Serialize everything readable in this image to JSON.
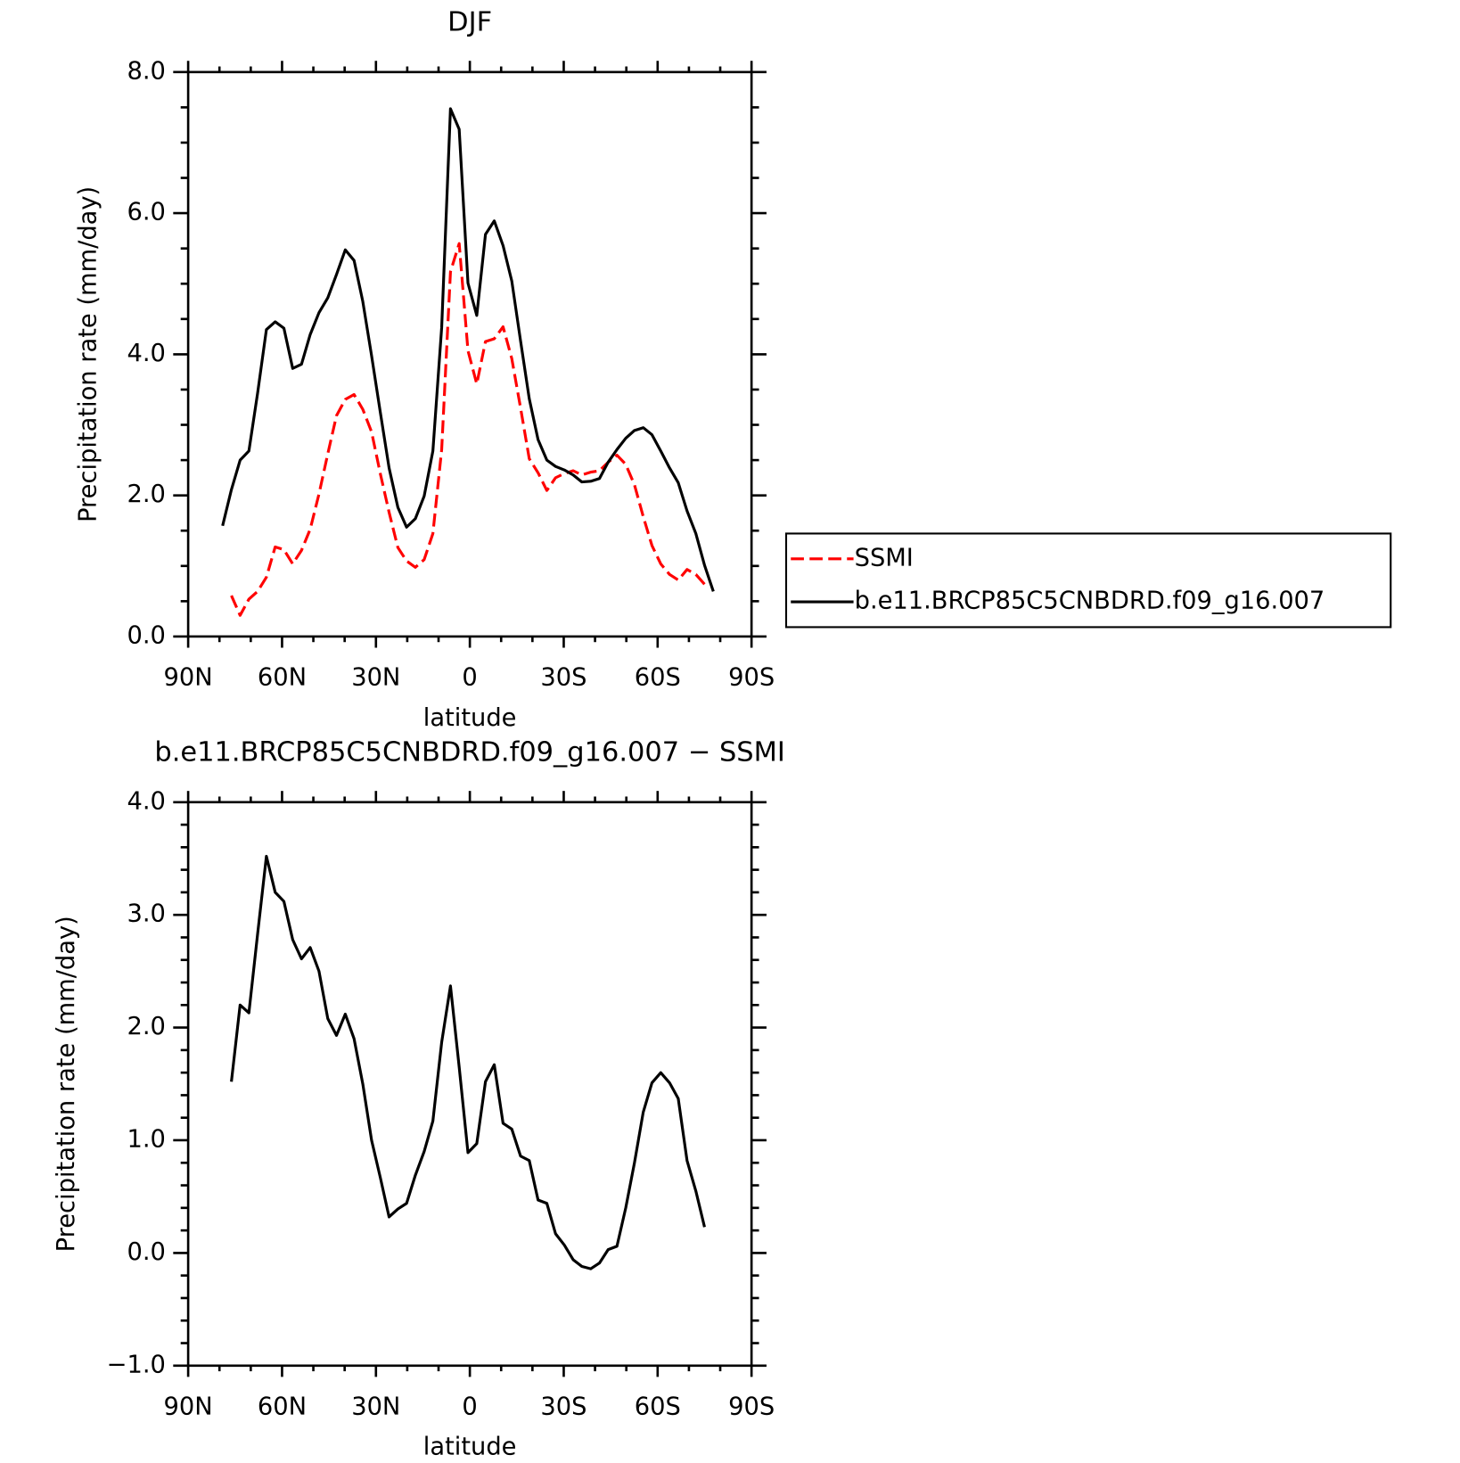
{
  "chart_data": [
    {
      "type": "line",
      "title": "DJF",
      "xlabel": "latitude",
      "ylabel": "Precipitation rate (mm/day)",
      "x": [
        79,
        76.2,
        73.4,
        70.6,
        67.8,
        65,
        62.2,
        59.4,
        56.6,
        53.8,
        51,
        48.2,
        45.4,
        42.6,
        39.8,
        37,
        34.2,
        31.4,
        28.6,
        25.8,
        23,
        20.2,
        17.4,
        14.6,
        11.8,
        9,
        6.2,
        3.4,
        0.6,
        -2.2,
        -5,
        -7.8,
        -10.6,
        -13.4,
        -16.2,
        -19,
        -21.8,
        -24.6,
        -27.4,
        -30.2,
        -33,
        -35.8,
        -38.6,
        -41.4,
        -44.2,
        -47,
        -49.8,
        -52.6,
        -55.4,
        -58.2,
        -61,
        -63.8,
        -66.6,
        -69.4,
        -72.2,
        -75,
        -77.8
      ],
      "series": [
        {
          "name": "SSMI",
          "color": "#ff0000",
          "line_style": "dashed",
          "values": [
            null,
            0.58,
            0.3,
            0.53,
            0.64,
            0.84,
            1.27,
            1.23,
            1.03,
            1.22,
            1.52,
            2.02,
            2.59,
            3.13,
            3.36,
            3.43,
            3.22,
            2.9,
            2.31,
            1.76,
            1.26,
            1.07,
            0.98,
            1.09,
            1.46,
            2.65,
            5.17,
            5.57,
            4.05,
            3.58,
            4.18,
            4.22,
            4.39,
            3.94,
            3.24,
            2.52,
            2.32,
            2.07,
            2.25,
            2.31,
            2.35,
            2.29,
            2.33,
            2.35,
            2.47,
            2.57,
            2.44,
            2.15,
            1.7,
            1.29,
            1.03,
            0.88,
            0.8,
            0.95,
            0.88,
            0.74,
            null
          ]
        },
        {
          "name": "b.e11.BRCP85C5CNBDRD.f09_g16.007",
          "color": "#000000",
          "line_style": "solid",
          "values": [
            1.57,
            2.08,
            2.5,
            2.63,
            3.45,
            4.35,
            4.46,
            4.37,
            3.8,
            3.86,
            4.28,
            4.59,
            4.8,
            5.13,
            5.48,
            5.33,
            4.75,
            3.98,
            3.18,
            2.39,
            1.83,
            1.55,
            1.67,
            1.99,
            2.63,
            4.38,
            7.48,
            7.19,
            5.01,
            4.55,
            5.7,
            5.89,
            5.54,
            5.04,
            4.19,
            3.37,
            2.79,
            2.5,
            2.41,
            2.36,
            2.29,
            2.19,
            2.2,
            2.24,
            2.47,
            2.65,
            2.81,
            2.92,
            2.96,
            2.86,
            2.63,
            2.39,
            2.18,
            1.78,
            1.46,
            1.01,
            0.64
          ]
        }
      ],
      "xlim": [
        90,
        -90
      ],
      "xticks": [
        {
          "value": 90,
          "label": "90N"
        },
        {
          "value": 60,
          "label": "60N"
        },
        {
          "value": 30,
          "label": "30N"
        },
        0,
        {
          "value": -30,
          "label": "30S"
        },
        {
          "value": -60,
          "label": "60S"
        },
        {
          "value": -90,
          "label": "90S"
        }
      ],
      "ylim": [
        0,
        8
      ],
      "yticks": [
        {
          "value": 0,
          "label": "0.0"
        },
        {
          "value": 2,
          "label": "2.0"
        },
        {
          "value": 4,
          "label": "4.0"
        },
        {
          "value": 6,
          "label": "6.0"
        },
        {
          "value": 8,
          "label": "8.0"
        }
      ],
      "legend": "right",
      "grid": false
    },
    {
      "type": "line",
      "title": "b.e11.BRCP85C5CNBDRD.f09_g16.007 − SSMI",
      "xlabel": "latitude",
      "ylabel": "Precipitation rate (mm/day)",
      "x": [
        76.2,
        73.4,
        70.6,
        67.8,
        65,
        62.2,
        59.4,
        56.6,
        53.8,
        51,
        48.2,
        45.4,
        42.6,
        39.8,
        37,
        34.2,
        31.4,
        28.6,
        25.8,
        23,
        20.2,
        17.4,
        14.6,
        11.8,
        9,
        6.2,
        3.4,
        0.6,
        -2.2,
        -5,
        -7.8,
        -10.6,
        -13.4,
        -16.2,
        -19,
        -21.8,
        -24.6,
        -27.4,
        -30.2,
        -33,
        -35.8,
        -38.6,
        -41.4,
        -44.2,
        -47,
        -49.8,
        -52.6,
        -55.4,
        -58.2,
        -61,
        -63.8,
        -66.6,
        -69.4,
        -72.2,
        -75
      ],
      "values": [
        1.52,
        2.2,
        2.13,
        2.83,
        3.52,
        3.2,
        3.12,
        2.78,
        2.61,
        2.71,
        2.5,
        2.08,
        1.93,
        2.12,
        1.9,
        1.5,
        1.0,
        0.67,
        0.32,
        0.39,
        0.44,
        0.69,
        0.9,
        1.17,
        1.87,
        2.37,
        1.65,
        0.89,
        0.97,
        1.52,
        1.67,
        1.15,
        1.1,
        0.86,
        0.82,
        0.47,
        0.44,
        0.17,
        0.07,
        -0.06,
        -0.12,
        -0.14,
        -0.09,
        0.03,
        0.06,
        0.4,
        0.8,
        1.25,
        1.51,
        1.6,
        1.51,
        1.37,
        0.82,
        0.55,
        0.23
      ],
      "color": "#000000",
      "line_style": "solid",
      "xlim": [
        90,
        -90
      ],
      "xticks": [
        {
          "value": 90,
          "label": "90N"
        },
        {
          "value": 60,
          "label": "60N"
        },
        {
          "value": 30,
          "label": "30N"
        },
        0,
        {
          "value": -30,
          "label": "30S"
        },
        {
          "value": -60,
          "label": "60S"
        },
        {
          "value": -90,
          "label": "90S"
        }
      ],
      "ylim": [
        -1,
        4
      ],
      "yticks": [
        {
          "value": -1,
          "label": "−1.0"
        },
        {
          "value": 0,
          "label": "0.0"
        },
        {
          "value": 1,
          "label": "1.0"
        },
        {
          "value": 2,
          "label": "2.0"
        },
        {
          "value": 3,
          "label": "3.0"
        },
        {
          "value": 4,
          "label": "4.0"
        }
      ],
      "grid": false
    }
  ]
}
